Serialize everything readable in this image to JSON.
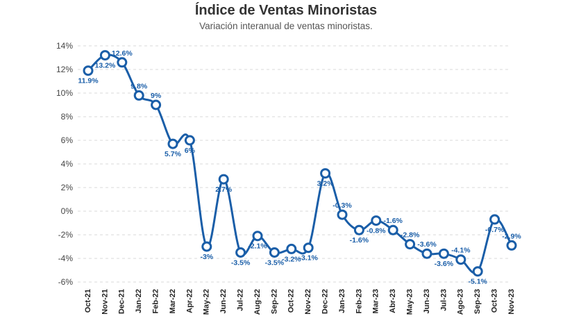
{
  "chart_data": {
    "type": "line",
    "title": "Índice de Ventas Minoristas",
    "subtitle": "Variación interanual de ventas minoristas.",
    "xlabel": "",
    "ylabel": "",
    "ylim": [
      -6,
      14
    ],
    "yticks": [
      14,
      12,
      10,
      8,
      6,
      4,
      2,
      0,
      -2,
      -4,
      -6
    ],
    "ytick_labels": [
      "14%",
      "12%",
      "10%",
      "8%",
      "6%",
      "4%",
      "2%",
      "0%",
      "-2%",
      "-4%",
      "-6%"
    ],
    "grid": true,
    "categories": [
      "Oct-21",
      "Nov-21",
      "Dec-21",
      "Jan-22",
      "Feb-22",
      "Mar-22",
      "Apr-22",
      "May-22",
      "Jun-22",
      "Jul-22",
      "Aug-22",
      "Sep-22",
      "Oct-22",
      "Nov-22",
      "Dec-22",
      "Jan-23",
      "Feb-23",
      "Mar-23",
      "Abr-23",
      "May-23",
      "Jun-23",
      "Jul-23",
      "Ago-23",
      "Sep-23",
      "Oct-23",
      "Nov-23"
    ],
    "values": [
      11.9,
      13.2,
      12.6,
      9.8,
      9.0,
      5.7,
      6.0,
      -3.0,
      2.7,
      -3.5,
      -2.1,
      -3.5,
      -3.2,
      -3.1,
      3.2,
      -0.3,
      -1.6,
      -0.8,
      -1.6,
      -2.8,
      -3.6,
      -3.6,
      -4.1,
      -5.1,
      -0.7,
      -2.9
    ],
    "labels": [
      "11.9%",
      "13.2%",
      "12.6%",
      "9.8%",
      "9%",
      "5.7%",
      "6%",
      "-3%",
      "2.7%",
      "-3.5%",
      "-2.1%",
      "-3.5%",
      "-3.2%",
      "-3.1%",
      "3.2%",
      "-0.3%",
      "-1.6%",
      "-0.8%",
      "-1.6%",
      "-2.8%",
      "-3.6%",
      "-3.6%",
      "-4.1%",
      "-5.1%",
      "-0.7%",
      "-2.9%"
    ],
    "line_color": "#1a5ea8"
  }
}
